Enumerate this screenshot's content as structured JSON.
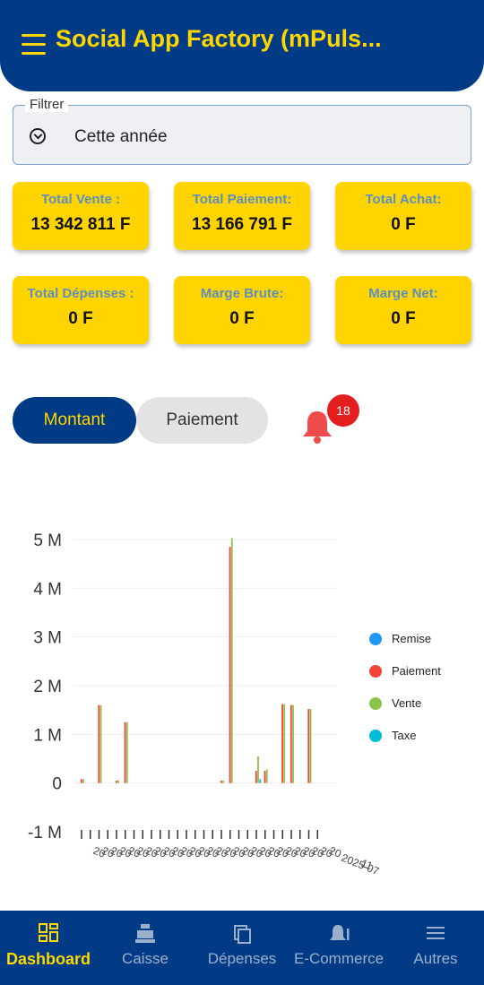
{
  "header": {
    "title": "Social App Factory (mPuls..."
  },
  "filter": {
    "label": "Filtrer",
    "value": "Cette année"
  },
  "cards": [
    {
      "label": "Total Vente :",
      "value": "13 342 811 F"
    },
    {
      "label": "Total Paiement:",
      "value": "13 166 791 F"
    },
    {
      "label": "Total Achat:",
      "value": "0 F"
    },
    {
      "label": "Total Dépenses :",
      "value": "0 F"
    },
    {
      "label": "Marge Brute:",
      "value": "0 F"
    },
    {
      "label": "Marge Net:",
      "value": "0 F"
    }
  ],
  "toggle": {
    "active": "Montant",
    "inactive": "Paiement"
  },
  "notifications": {
    "count": "18"
  },
  "chart_data": {
    "type": "bar",
    "yticks": [
      "5 M",
      "4 M",
      "3 M",
      "2 M",
      "1 M",
      "0",
      "-1 M"
    ],
    "ylim": [
      -1000000,
      5000000
    ],
    "x_label_text": "20",
    "x_tail_labels": [
      "2025-07",
      "11"
    ],
    "category_count": 28,
    "series": [
      {
        "name": "Remise",
        "color": "#2196f3",
        "values": [
          0,
          0,
          0,
          0,
          0,
          0,
          0,
          0,
          0,
          0,
          0,
          0,
          0,
          0,
          0,
          0,
          0,
          0,
          0,
          0,
          0,
          0,
          0,
          0,
          0,
          0,
          0,
          0
        ]
      },
      {
        "name": "Paiement",
        "color": "#f44336",
        "values": [
          80000,
          0,
          1600000,
          0,
          50000,
          1250000,
          0,
          0,
          0,
          0,
          0,
          0,
          0,
          0,
          0,
          0,
          50000,
          4850000,
          0,
          0,
          250000,
          250000,
          0,
          1620000,
          1600000,
          0,
          1520000,
          0
        ]
      },
      {
        "name": "Vente",
        "color": "#8bc34a",
        "values": [
          80000,
          0,
          1600000,
          0,
          60000,
          1250000,
          0,
          0,
          0,
          0,
          0,
          0,
          0,
          0,
          0,
          0,
          50000,
          5030000,
          0,
          0,
          550000,
          280000,
          0,
          1620000,
          1600000,
          0,
          1520000,
          0
        ]
      },
      {
        "name": "Taxe",
        "color": "#00bcd4",
        "values": [
          0,
          0,
          0,
          0,
          0,
          0,
          0,
          0,
          0,
          0,
          0,
          0,
          0,
          0,
          0,
          0,
          0,
          0,
          0,
          0,
          80000,
          0,
          0,
          0,
          0,
          0,
          0,
          0
        ]
      }
    ]
  },
  "nav": [
    {
      "label": "Dashboard",
      "icon": "dashboard-icon"
    },
    {
      "label": "Caisse",
      "icon": "cash-register-icon"
    },
    {
      "label": "Dépenses",
      "icon": "expenses-icon"
    },
    {
      "label": "E-Commerce",
      "icon": "bell-icon"
    },
    {
      "label": "Autres",
      "icon": "menu-icon"
    }
  ]
}
